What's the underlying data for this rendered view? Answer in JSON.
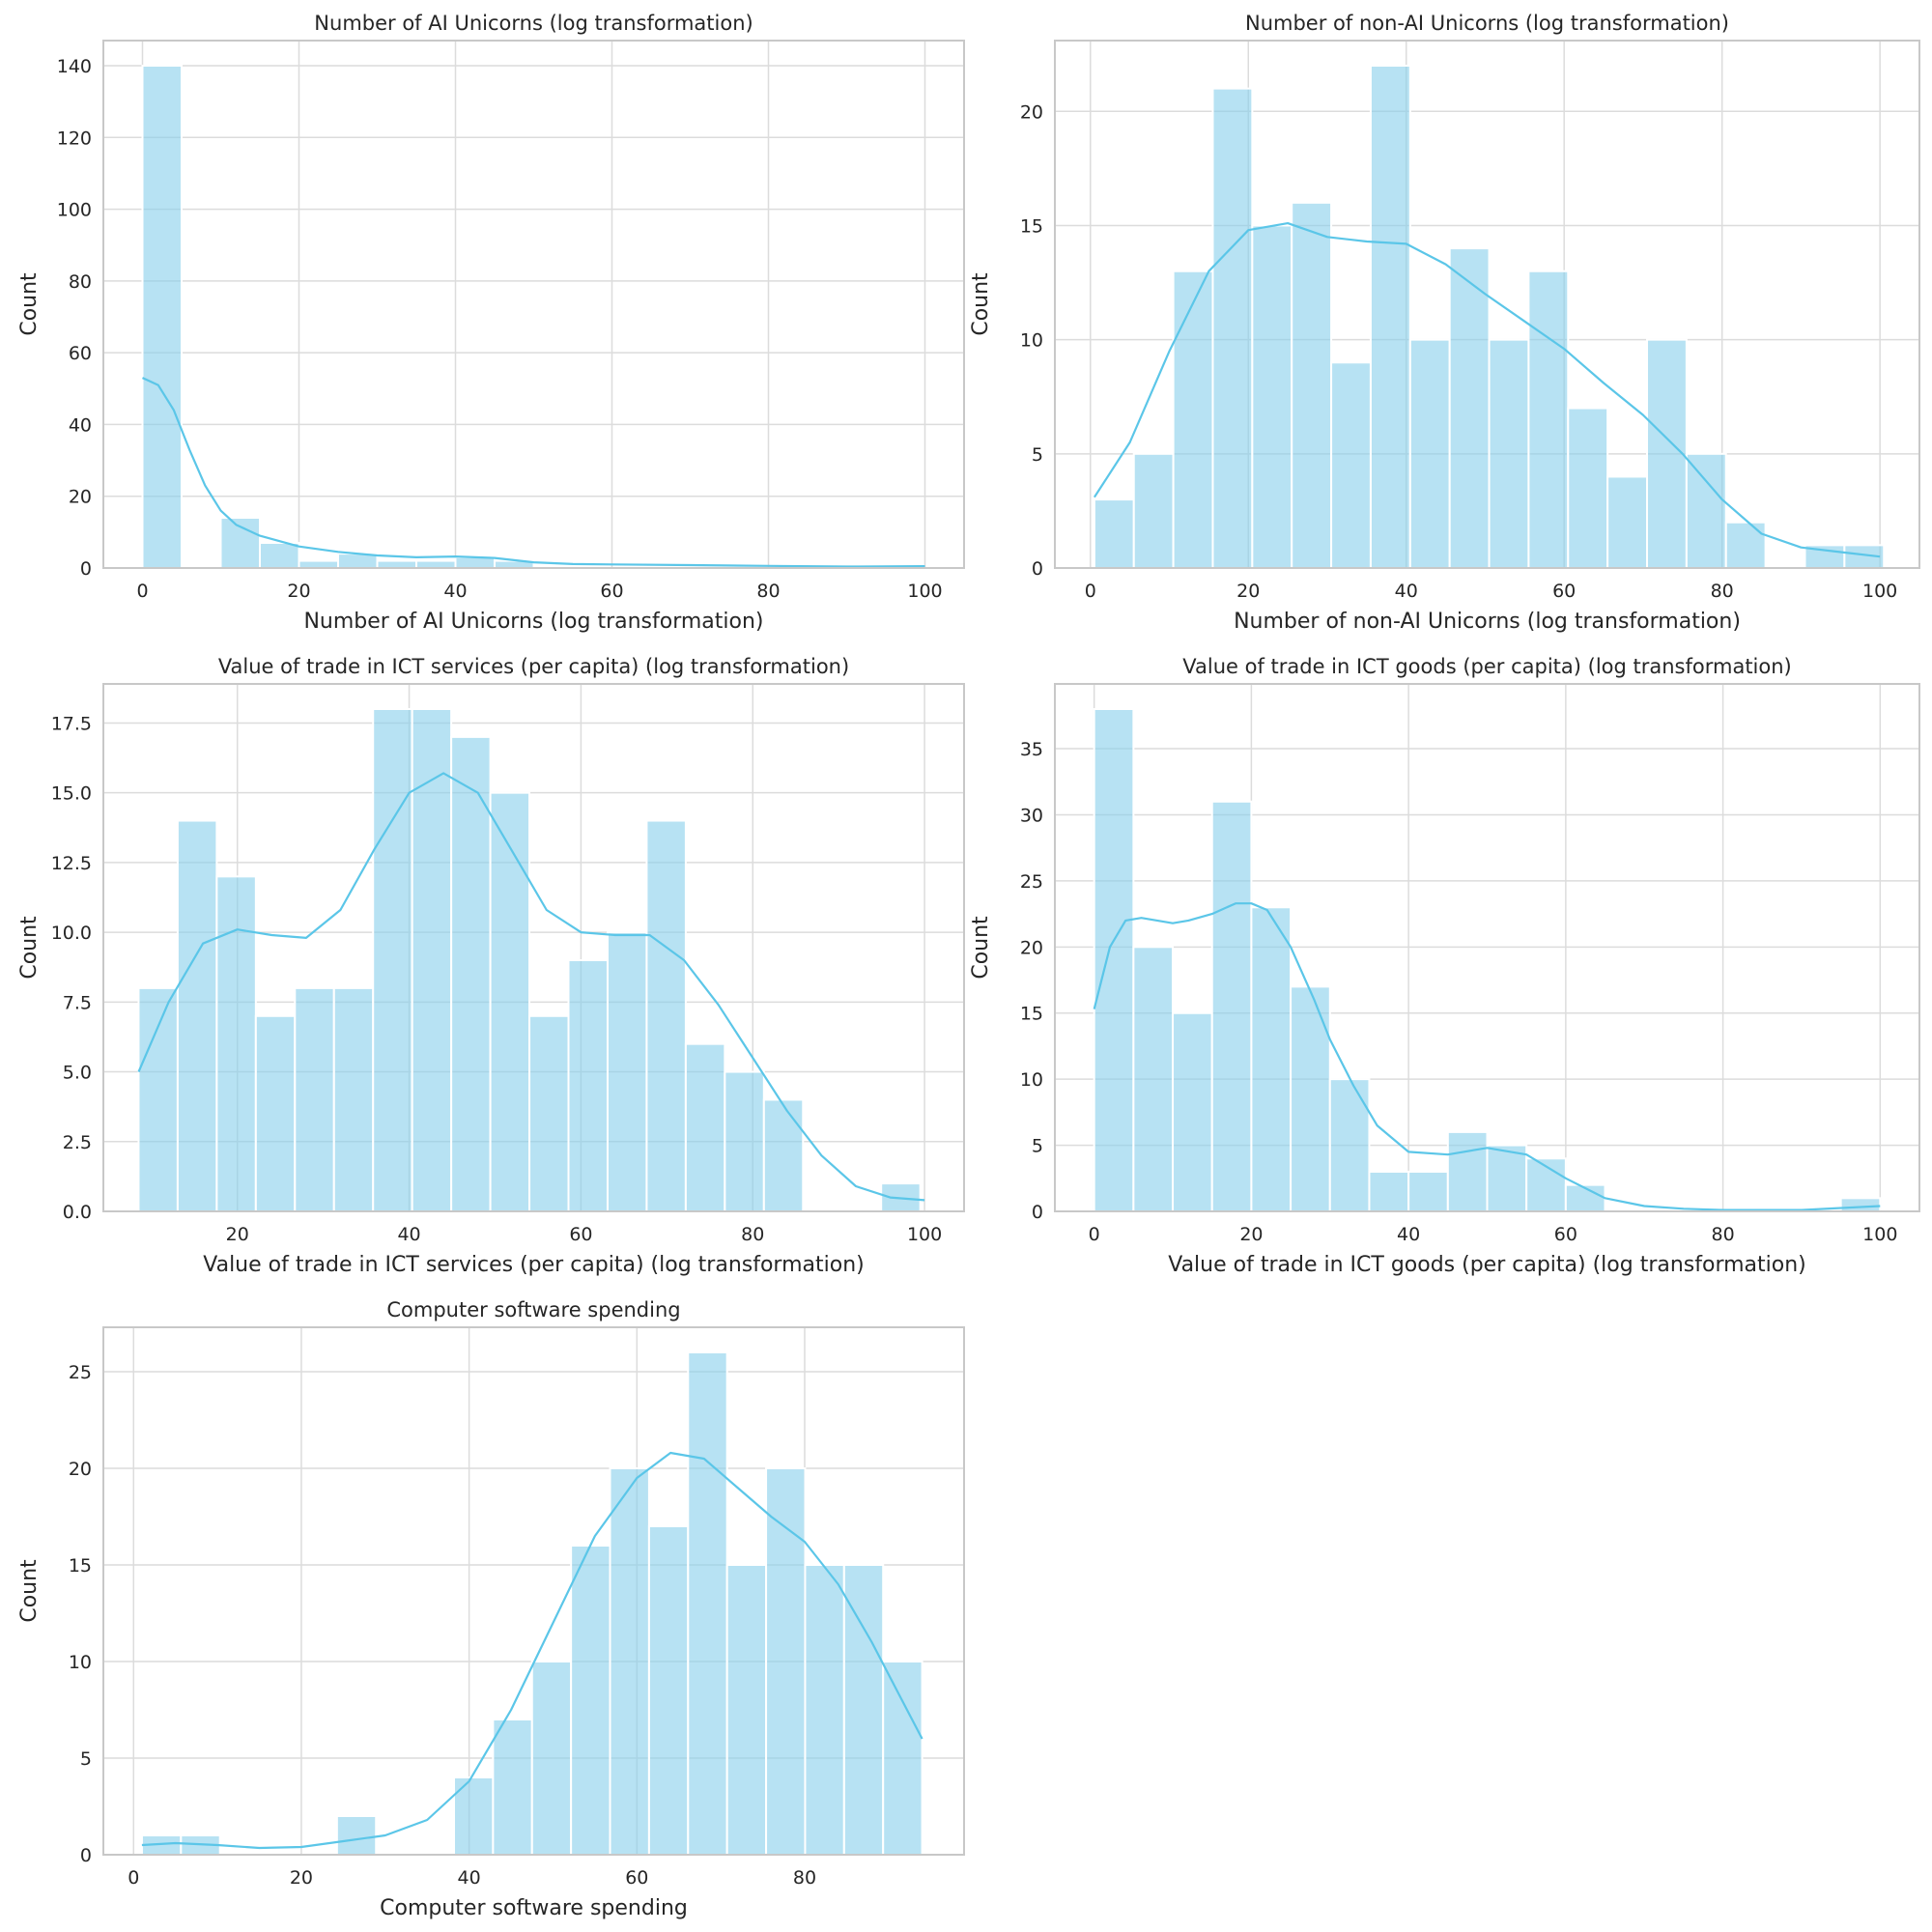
{
  "style": {
    "bar_fill": "#87ceeb",
    "bar_opacity": 0.6,
    "kde_color": "#5bc6e8",
    "grid_color": "#dcdcdc",
    "frame_color": "#c8c8c8"
  },
  "chart_data": [
    {
      "type": "bar",
      "subtype": "histogram_with_kde",
      "title": "Number of AI Unicorns (log transformation)",
      "xlabel": "Number of AI Unicorns (log transformation)",
      "ylabel": "Count",
      "xlim": [
        -5,
        105
      ],
      "ylim": [
        0,
        147
      ],
      "xticks": [
        0,
        20,
        40,
        60,
        80,
        100
      ],
      "yticks": [
        0,
        20,
        40,
        60,
        80,
        100,
        120,
        140
      ],
      "ytick_labels": [
        "0",
        "20",
        "40",
        "60",
        "80",
        "100",
        "120",
        "140"
      ],
      "bin_edges": [
        0,
        5,
        10,
        15,
        20,
        25,
        30,
        35,
        40,
        45,
        50,
        55,
        60,
        65,
        70,
        75,
        80,
        85,
        90,
        95,
        100
      ],
      "counts": [
        140,
        0,
        14,
        7,
        2,
        4,
        2,
        2,
        3,
        2,
        0,
        0,
        0,
        0,
        0,
        0,
        0,
        0,
        0,
        0
      ],
      "kde": {
        "x": [
          0,
          2,
          4,
          6,
          8,
          10,
          12,
          15,
          20,
          25,
          30,
          35,
          40,
          45,
          50,
          55,
          60,
          70,
          80,
          90,
          100
        ],
        "y": [
          53,
          51,
          44,
          33,
          23,
          16,
          12,
          9,
          6,
          4.5,
          3.5,
          3,
          3.2,
          2.8,
          1.6,
          1.1,
          1,
          0.8,
          0.6,
          0.4,
          0.5
        ]
      }
    },
    {
      "type": "bar",
      "subtype": "histogram_with_kde",
      "title": "Number of non-AI Unicorns (log transformation)",
      "xlabel": "Number of non-AI Unicorns (log transformation)",
      "ylabel": "Count",
      "xlim": [
        -4.5,
        105
      ],
      "ylim": [
        0,
        23.1
      ],
      "xticks": [
        0,
        20,
        40,
        60,
        80,
        100
      ],
      "yticks": [
        0,
        5,
        10,
        15,
        20
      ],
      "ytick_labels": [
        "0",
        "5",
        "10",
        "15",
        "20"
      ],
      "bin_edges": [
        0.5,
        5.5,
        10.5,
        15.5,
        20.5,
        25.5,
        30.5,
        35.5,
        40.5,
        45.5,
        50.5,
        55.5,
        60.5,
        65.5,
        70.5,
        75.5,
        80.5,
        85.5,
        90.5,
        95.5,
        100.5
      ],
      "counts": [
        3,
        5,
        13,
        21,
        15,
        16,
        9,
        22,
        10,
        14,
        10,
        13,
        7,
        4,
        10,
        5,
        2,
        0,
        1,
        1
      ],
      "kde": {
        "x": [
          0.5,
          5,
          10,
          15,
          20,
          25,
          30,
          35,
          40,
          45,
          50,
          55,
          60,
          65,
          70,
          75,
          80,
          85,
          90,
          95,
          100
        ],
        "y": [
          3.1,
          5.5,
          9.5,
          13,
          14.8,
          15.1,
          14.5,
          14.3,
          14.2,
          13.3,
          12,
          10.8,
          9.6,
          8.1,
          6.7,
          5,
          3,
          1.5,
          0.9,
          0.7,
          0.5
        ]
      }
    },
    {
      "type": "bar",
      "subtype": "histogram_with_kde",
      "title": "Value of trade in ICT services (per capita) (log transformation)",
      "xlabel": "Value of trade in ICT services (per capita) (log transformation)",
      "ylabel": "Count",
      "xlim": [
        4.4,
        104.6
      ],
      "ylim": [
        0,
        18.9
      ],
      "xticks": [
        20,
        40,
        60,
        80,
        100
      ],
      "yticks": [
        0,
        2.5,
        5,
        7.5,
        10,
        12.5,
        15,
        17.5
      ],
      "ytick_labels": [
        "0.0",
        "2.5",
        "5.0",
        "7.5",
        "10.0",
        "12.5",
        "15.0",
        "17.5"
      ],
      "bin_edges": [
        8.5,
        13.05,
        17.6,
        22.15,
        26.7,
        31.25,
        35.8,
        40.35,
        44.9,
        49.45,
        54,
        58.55,
        63.1,
        67.65,
        72.2,
        76.75,
        81.3,
        85.85,
        90.4,
        94.95,
        99.5
      ],
      "counts": [
        8,
        14,
        12,
        7,
        8,
        8,
        18,
        18,
        17,
        15,
        7,
        9,
        10,
        14,
        6,
        5,
        4,
        0,
        0,
        1
      ],
      "kde": {
        "x": [
          8.5,
          12,
          16,
          20,
          24,
          28,
          32,
          36,
          40,
          44,
          48,
          52,
          56,
          60,
          64,
          68,
          72,
          76,
          80,
          84,
          88,
          92,
          96,
          100
        ],
        "y": [
          5,
          7.5,
          9.6,
          10.1,
          9.9,
          9.8,
          10.8,
          13,
          15,
          15.7,
          15,
          12.9,
          10.8,
          10,
          9.9,
          9.9,
          9,
          7.4,
          5.5,
          3.6,
          2,
          0.9,
          0.5,
          0.4
        ]
      }
    },
    {
      "type": "bar",
      "subtype": "histogram_with_kde",
      "title": "Value of trade in ICT goods (per capita) (log transformation)",
      "xlabel": "Value of trade in ICT goods (per capita) (log transformation)",
      "ylabel": "Count",
      "xlim": [
        -5,
        105
      ],
      "ylim": [
        0,
        39.9
      ],
      "xticks": [
        0,
        20,
        40,
        60,
        80,
        100
      ],
      "yticks": [
        0,
        5,
        10,
        15,
        20,
        25,
        30,
        35
      ],
      "ytick_labels": [
        "0",
        "5",
        "10",
        "15",
        "20",
        "25",
        "30",
        "35"
      ],
      "bin_edges": [
        0,
        5,
        10,
        15,
        20,
        25,
        30,
        35,
        40,
        45,
        50,
        55,
        60,
        65,
        70,
        75,
        80,
        85,
        90,
        95,
        100
      ],
      "counts": [
        38,
        20,
        15,
        31,
        23,
        17,
        10,
        3,
        3,
        6,
        5,
        4,
        2,
        0,
        0,
        0,
        0,
        0,
        0,
        1
      ],
      "kde": {
        "x": [
          0,
          2,
          4,
          6,
          8,
          10,
          12,
          15,
          18,
          20,
          22,
          25,
          28,
          30,
          33,
          36,
          40,
          45,
          50,
          55,
          60,
          65,
          70,
          75,
          80,
          90,
          100
        ],
        "y": [
          15.3,
          20,
          22,
          22.2,
          22,
          21.8,
          22,
          22.5,
          23.3,
          23.3,
          22.8,
          20,
          16,
          13,
          9.5,
          6.5,
          4.5,
          4.3,
          4.8,
          4.3,
          2.5,
          1,
          0.4,
          0.2,
          0.1,
          0.1,
          0.4
        ]
      }
    },
    {
      "type": "bar",
      "subtype": "histogram_with_kde",
      "title": "Computer software spending",
      "xlabel": "Computer software spending",
      "ylabel": "Count",
      "xlim": [
        -3.6,
        99
      ],
      "ylim": [
        0,
        27.3
      ],
      "xticks": [
        0,
        20,
        40,
        60,
        80
      ],
      "yticks": [
        0,
        5,
        10,
        15,
        20,
        25
      ],
      "ytick_labels": [
        "0",
        "5",
        "10",
        "15",
        "20",
        "25"
      ],
      "bin_edges": [
        1,
        5.65,
        10.3,
        14.95,
        19.6,
        24.25,
        28.9,
        33.55,
        38.2,
        42.85,
        47.5,
        52.15,
        56.8,
        61.45,
        66.1,
        70.75,
        75.4,
        80.05,
        84.7,
        89.35,
        94
      ],
      "counts": [
        1,
        1,
        0,
        0,
        0,
        2,
        0,
        0,
        4,
        7,
        10,
        16,
        20,
        17,
        26,
        15,
        20,
        15,
        15,
        10
      ],
      "kde": {
        "x": [
          1,
          5,
          10,
          15,
          20,
          25,
          30,
          35,
          40,
          45,
          50,
          55,
          60,
          64,
          68,
          72,
          76,
          80,
          84,
          88,
          91,
          94
        ],
        "y": [
          0.5,
          0.6,
          0.5,
          0.35,
          0.4,
          0.7,
          1,
          1.8,
          3.8,
          7.5,
          12,
          16.5,
          19.5,
          20.8,
          20.5,
          19,
          17.5,
          16.2,
          14,
          11,
          8.5,
          6
        ]
      }
    }
  ]
}
